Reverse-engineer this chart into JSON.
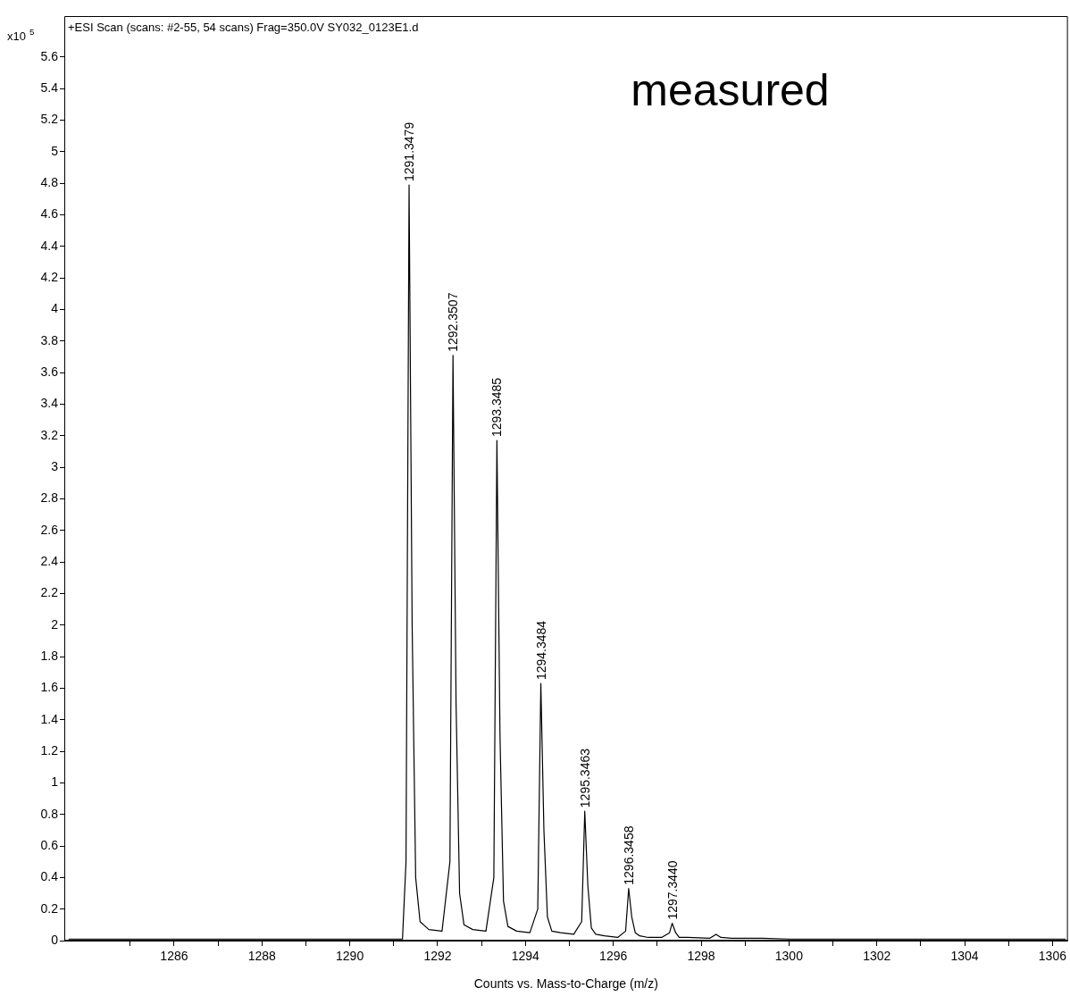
{
  "chart_data": {
    "type": "line",
    "title": "+ESI Scan (scans: #2-55, 54 scans) Frag=350.0V SY032_0123E1.d",
    "xlabel": "Counts vs. Mass-to-Charge (m/z)",
    "ylabel": "x10$^{5}$",
    "x": [
      1283.6,
      1285,
      1287,
      1289,
      1291.2,
      1291.28,
      1291.35,
      1291.42,
      1291.5,
      1291.6,
      1291.8,
      1292.1,
      1292.28,
      1292.35,
      1292.42,
      1292.5,
      1292.6,
      1292.8,
      1293.1,
      1293.28,
      1293.35,
      1293.42,
      1293.5,
      1293.6,
      1293.8,
      1294.1,
      1294.28,
      1294.35,
      1294.42,
      1294.5,
      1294.6,
      1294.8,
      1295.1,
      1295.28,
      1295.35,
      1295.42,
      1295.5,
      1295.6,
      1295.8,
      1296.1,
      1296.28,
      1296.35,
      1296.42,
      1296.5,
      1296.6,
      1296.8,
      1297.1,
      1297.28,
      1297.34,
      1297.42,
      1297.5,
      1297.7,
      1298.2,
      1298.34,
      1298.45,
      1298.7,
      1299.4,
      1300,
      1302,
      1304,
      1306.3
    ],
    "series": [
      {
        "color": "#000000",
        "values": [
          0.01,
          0.01,
          0.01,
          0.01,
          0.01,
          0.5,
          4.79,
          2.0,
          0.4,
          0.12,
          0.07,
          0.06,
          0.5,
          3.71,
          1.5,
          0.3,
          0.1,
          0.07,
          0.06,
          0.4,
          3.17,
          1.3,
          0.25,
          0.09,
          0.06,
          0.05,
          0.2,
          1.63,
          0.7,
          0.15,
          0.06,
          0.05,
          0.04,
          0.12,
          0.82,
          0.35,
          0.08,
          0.04,
          0.03,
          0.02,
          0.06,
          0.33,
          0.15,
          0.05,
          0.03,
          0.02,
          0.02,
          0.05,
          0.11,
          0.05,
          0.02,
          0.02,
          0.015,
          0.04,
          0.02,
          0.015,
          0.015,
          0.01,
          0.01,
          0.01,
          0.01
        ]
      }
    ],
    "xlim": [
      1283.5,
      1306.35
    ],
    "xticks": [
      {
        "value": 1285,
        "label": null
      },
      1286,
      {
        "value": 1287,
        "label": null
      },
      1288,
      {
        "value": 1289,
        "label": null
      },
      1290,
      {
        "value": 1291,
        "label": null
      },
      1292,
      {
        "value": 1293,
        "label": null
      },
      1294,
      {
        "value": 1295,
        "label": null
      },
      1296,
      {
        "value": 1297,
        "label": null
      },
      1298,
      {
        "value": 1299,
        "label": null
      },
      1300,
      {
        "value": 1301,
        "label": null
      },
      1302,
      {
        "value": 1303,
        "label": null
      },
      1304,
      {
        "value": 1305,
        "label": null
      },
      1306
    ],
    "ylim": [
      0,
      5.86
    ],
    "yticks": [
      0,
      0.2,
      0.4,
      0.6,
      0.8,
      1,
      1.2,
      1.4,
      1.6,
      1.8,
      2,
      2.2,
      2.4,
      2.6,
      2.8,
      3,
      3.2,
      3.4,
      3.6,
      3.8,
      4,
      4.2,
      4.4,
      4.6,
      4.8,
      5,
      5.2,
      5.4,
      5.6
    ],
    "marker": "none",
    "legend": false,
    "annotations": [
      {
        "text": "1291.3479",
        "x": 1291.35,
        "y": 4.79
      },
      {
        "text": "1292.3507",
        "x": 1292.35,
        "y": 3.71
      },
      {
        "text": "1293.3485",
        "x": 1293.35,
        "y": 3.17
      },
      {
        "text": "1294.3484",
        "x": 1294.35,
        "y": 1.63
      },
      {
        "text": "1295.3463",
        "x": 1295.35,
        "y": 0.82
      },
      {
        "text": "1296.3458",
        "x": 1296.35,
        "y": 0.33
      },
      {
        "text": "1297.3440",
        "x": 1297.34,
        "y": 0.11
      },
      "measured"
    ]
  }
}
